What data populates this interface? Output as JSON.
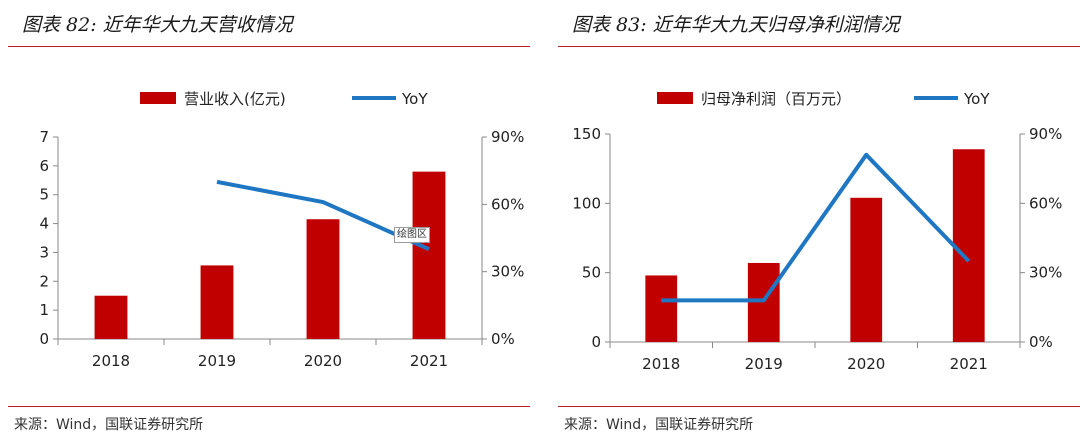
{
  "charts": [
    {
      "figure_title": "图表 82:  近年华大九天营收情况",
      "source": "来源：Wind，国联证券研究所",
      "tooltip": "绘图区"
    },
    {
      "figure_title": "图表 83:  近年华大九天归母净利润情况",
      "source": "来源：Wind，国联证券研究所"
    }
  ],
  "colors": {
    "bar": "#c00000",
    "line": "#1f77c4",
    "rule": "#b51e2a"
  },
  "chart_data": [
    {
      "type": "bar",
      "categories": [
        "2018",
        "2019",
        "2020",
        "2021"
      ],
      "series": [
        {
          "name": "营业收入(亿元)",
          "type": "bar",
          "axis": "left",
          "values": [
            1.5,
            2.55,
            4.15,
            5.8
          ]
        },
        {
          "name": "YoY",
          "type": "line",
          "axis": "right",
          "values": [
            null,
            0.7,
            0.61,
            0.4
          ]
        }
      ],
      "y_left": {
        "min": 0,
        "max": 7,
        "ticks": [
          0,
          1,
          2,
          3,
          4,
          5,
          6,
          7
        ],
        "tick_labels": [
          "0",
          "1",
          "2",
          "3",
          "4",
          "5",
          "6",
          "7"
        ]
      },
      "y_right": {
        "min": 0,
        "max": 0.9,
        "ticks": [
          0,
          0.3,
          0.6,
          0.9
        ],
        "tick_labels": [
          "0%",
          "30%",
          "60%",
          "90%"
        ]
      },
      "legend_position": "top"
    },
    {
      "type": "bar",
      "categories": [
        "2018",
        "2019",
        "2020",
        "2021"
      ],
      "series": [
        {
          "name": "归母净利润（百万元）",
          "type": "bar",
          "axis": "left",
          "values": [
            48,
            57,
            104,
            139
          ]
        },
        {
          "name": "YoY",
          "type": "line",
          "axis": "right",
          "values": [
            0.18,
            0.18,
            0.81,
            0.35
          ]
        }
      ],
      "y_left": {
        "min": 0,
        "max": 150,
        "ticks": [
          0,
          50,
          100,
          150
        ],
        "tick_labels": [
          "0",
          "50",
          "100",
          "150"
        ]
      },
      "y_right": {
        "min": 0,
        "max": 0.9,
        "ticks": [
          0,
          0.3,
          0.6,
          0.9
        ],
        "tick_labels": [
          "0%",
          "30%",
          "60%",
          "90%"
        ]
      },
      "legend_position": "top"
    }
  ]
}
